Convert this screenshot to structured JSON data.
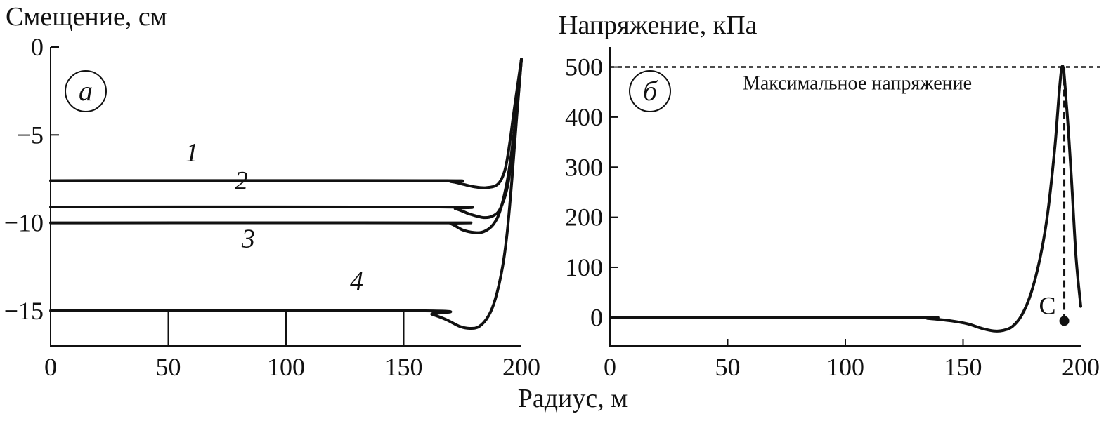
{
  "xlabel": "Радиус, м",
  "chart_data": [
    {
      "type": "line",
      "panel": "а",
      "ylabel": "Смещение, см",
      "xlim": [
        0,
        200
      ],
      "ylim": [
        -17,
        0
      ],
      "xticks": [
        0,
        50,
        100,
        150,
        200
      ],
      "yticks": [
        0,
        -5,
        -10,
        -15
      ],
      "ytick_labels": [
        "0",
        "−5",
        "−10",
        "−15"
      ],
      "series": [
        {
          "name": "1",
          "x": [
            0,
            160,
            170,
            175,
            180,
            185,
            190,
            193,
            195,
            197,
            200
          ],
          "y": [
            -7.6,
            -7.6,
            -7.65,
            -7.8,
            -7.95,
            -8.0,
            -7.8,
            -7.0,
            -5.5,
            -3.5,
            -0.7
          ]
        },
        {
          "name": "2",
          "x": [
            0,
            165,
            172,
            178,
            184,
            188,
            191,
            194,
            196,
            198,
            200
          ],
          "y": [
            -9.1,
            -9.1,
            -9.2,
            -9.5,
            -9.7,
            -9.6,
            -9.2,
            -8.0,
            -6.2,
            -3.8,
            -0.7
          ]
        },
        {
          "name": "3",
          "x": [
            0,
            165,
            170,
            175,
            180,
            184,
            188,
            191,
            194,
            196,
            198,
            200
          ],
          "y": [
            -10.0,
            -10.0,
            -10.05,
            -10.4,
            -10.55,
            -10.5,
            -10.1,
            -9.3,
            -7.6,
            -5.8,
            -3.5,
            -0.7
          ]
        },
        {
          "name": "4",
          "x": [
            0,
            157,
            162,
            168,
            174,
            178,
            182,
            186,
            189,
            192,
            194,
            196,
            198,
            200
          ],
          "y": [
            -15.0,
            -15.0,
            -15.2,
            -15.5,
            -15.9,
            -16.0,
            -15.9,
            -15.3,
            -14.3,
            -12.5,
            -10.5,
            -7.5,
            -4.0,
            -0.7
          ]
        }
      ],
      "series_labels": [
        {
          "text": "1",
          "x": 60,
          "y": -6.5
        },
        {
          "text": "2",
          "x": 81,
          "y": -8.1
        },
        {
          "text": "3",
          "x": 84,
          "y": -11.4
        },
        {
          "text": "4",
          "x": 130,
          "y": -13.8
        }
      ]
    },
    {
      "type": "line",
      "panel": "б",
      "ylabel": "Напряжение, кПа",
      "xlim": [
        0,
        200
      ],
      "ylim": [
        -57,
        540
      ],
      "xticks": [
        0,
        50,
        100,
        150,
        200
      ],
      "yticks": [
        0,
        100,
        200,
        300,
        400,
        500
      ],
      "ytick_labels": [
        "0",
        "100",
        "200",
        "300",
        "400",
        "500"
      ],
      "series": [
        {
          "name": "",
          "x": [
            0,
            128,
            135,
            145,
            152,
            158,
            163,
            167,
            171,
            175,
            179,
            183,
            186,
            189,
            192,
            194,
            196,
            198,
            200
          ],
          "y": [
            0,
            0,
            -2,
            -7,
            -13,
            -22,
            -27,
            -26,
            -18,
            5,
            50,
            125,
            210,
            340,
            500,
            420,
            280,
            120,
            22
          ]
        }
      ],
      "reference_line": {
        "y": 500,
        "label": "Максимальное напряжение"
      },
      "point": {
        "label": "C",
        "x": 193,
        "y": -7
      }
    }
  ]
}
